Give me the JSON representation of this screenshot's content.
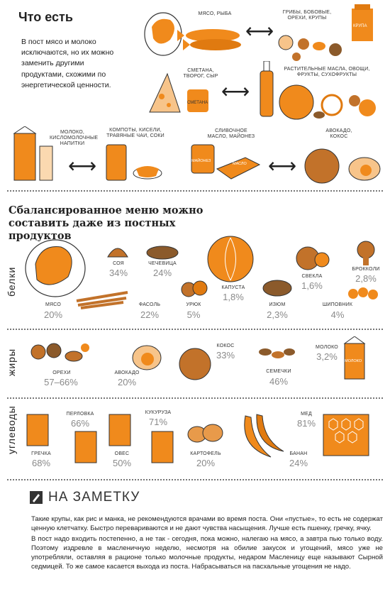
{
  "intro": {
    "title": "Что есть",
    "text": "В пост мясо и молоко исключаются, но их можно заменить другими продуктами, схожими по энергетической ценности."
  },
  "swaps": [
    {
      "left": "МЯСО, РЫБА",
      "right": "ГРИБЫ, БОБОВЫЕ, ОРЕХИ, КРУПЫ"
    },
    {
      "left": "СМЕТАНА, ТВОРОГ, СЫР",
      "right": "РАСТИТЕЛЬНЫЕ МАСЛА, ОВОЩИ, ФРУКТЫ, СУХОФРУКТЫ"
    },
    {
      "left": "МОЛОКО, КИСЛОМОЛОЧНЫЕ НАПИТКИ",
      "right": "КОМПОТЫ, КИСЕЛИ, ТРАВЯНЫЕ ЧАИ, СОКИ"
    },
    {
      "left": "СЛИВОЧНОЕ МАСЛО, МАЙОНЕЗ",
      "right": "АВОКАДО, КОКОС"
    }
  ],
  "package_labels": {
    "krupa": "КРУПА",
    "smetana": "СМЕТАНА",
    "mayonez": "МАЙОНЕЗ",
    "maslo": "МАСЛО",
    "moloko": "МОЛОКО"
  },
  "menu_title": "Сбалансированное меню можно составить даже из постных продуктов",
  "sections": {
    "proteins": {
      "label": "белки",
      "items": [
        {
          "name": "МЯСО",
          "value": "20%"
        },
        {
          "name": "СОЯ",
          "value": "34%"
        },
        {
          "name": "ЧЕЧЕВИЦА",
          "value": "24%"
        },
        {
          "name": "ФАСОЛЬ",
          "value": "22%"
        },
        {
          "name": "УРЮК",
          "value": "5%"
        },
        {
          "name": "КАПУСТА",
          "value": "1,8%"
        },
        {
          "name": "ИЗЮМ",
          "value": "2,3%"
        },
        {
          "name": "СВЕКЛА",
          "value": "1,6%"
        },
        {
          "name": "БРОККОЛИ",
          "value": "2,8%"
        },
        {
          "name": "ШИПОВНИК",
          "value": "4%"
        }
      ]
    },
    "fats": {
      "label": "жиры",
      "items": [
        {
          "name": "ОРЕХИ",
          "value": "57–66%"
        },
        {
          "name": "АВОКАДО",
          "value": "20%"
        },
        {
          "name": "КОКОС",
          "value": "33%"
        },
        {
          "name": "СЕМЕЧКИ",
          "value": "46%"
        },
        {
          "name": "МОЛОКО",
          "value": "3,2%"
        }
      ]
    },
    "carbs": {
      "label": "углеводы",
      "items": [
        {
          "name": "ПЕРЛОВКА",
          "value": "66%"
        },
        {
          "name": "КУКУРУЗА",
          "value": "71%"
        },
        {
          "name": "ГРЕЧКА",
          "value": "68%"
        },
        {
          "name": "ОВЕС",
          "value": "50%"
        },
        {
          "name": "КАРТОФЕЛЬ",
          "value": "20%"
        },
        {
          "name": "БАНАН",
          "value": "24%"
        },
        {
          "name": "МЕД",
          "value": "81%"
        }
      ]
    }
  },
  "note": {
    "title": "НА ЗАМЕТКУ",
    "p1": "Такие крупы, как рис и манка, не рекомендуются врачами во время поста. Они «пустые», то есть не содержат ценную клетчатку. Быстро перевариваются и не дают чувства насыщения. Лучше есть пшенку, гречку, ячку.",
    "p2": "В пост надо входить постепенно, а не так - сегодня, пока можно, налегаю на мясо, а завтра пью только воду. Поэтому издревле в масленичную неделю, несмотря на обилие закусок и угощений, мясо уже не употребляли, оставляя в рационе только молочные продукты, недаром Масленицу еще называют Сырной седмицей. То же самое касается выхода из поста. Набрасываться на пасхальные угощения не надо."
  },
  "colors": {
    "accent": "#f08a1c",
    "percent": "#8a8a8a"
  }
}
